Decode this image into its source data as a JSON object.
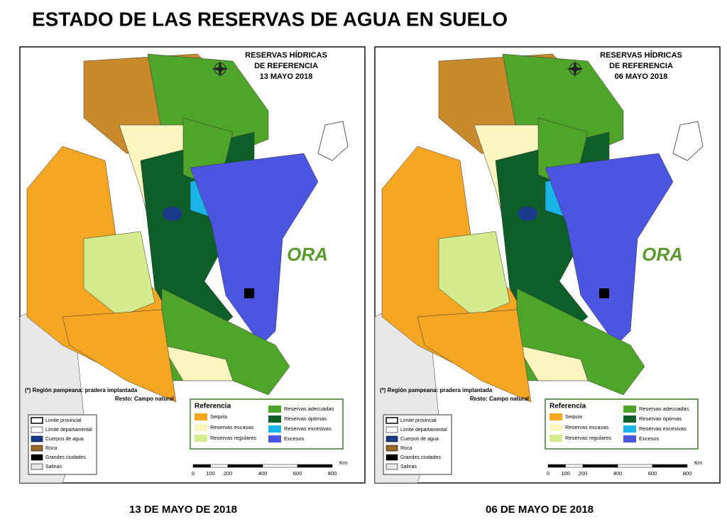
{
  "title": "ESTADO DE LAS RESERVAS DE AGUA EN SUELO",
  "maps": [
    {
      "heading": [
        "RESERVAS HÍDRICAS",
        "DE REFERENCIA",
        "13 MAYO 2018"
      ],
      "caption": "13 DE MAYO DE 2018"
    },
    {
      "heading": [
        "RESERVAS HÍDRICAS",
        "DE REFERENCIA",
        "06 MAYO 2018"
      ],
      "caption": "06 DE MAYO DE 2018"
    }
  ],
  "note": [
    "(*) Región pampeana: pradera implantada",
    "Resto: Campo natural"
  ],
  "logo": "ORA",
  "base_legend": [
    {
      "label": "Límite provincial",
      "color": "#ffffff"
    },
    {
      "label": "Límite departamental",
      "color": "#ffffff"
    },
    {
      "label": "Cuerpos de agua",
      "color": "#1a3a8a"
    },
    {
      "label": "Roca",
      "color": "#9a6a2a"
    },
    {
      "label": "Grandes ciudades",
      "color": "#000000"
    },
    {
      "label": "Salinas",
      "color": "#e8e8e8"
    }
  ],
  "legend_title": "Referencia",
  "legend": [
    {
      "label": "Sequía",
      "color": "#f5a623"
    },
    {
      "label": "Reservas escasas",
      "color": "#fbf5c0"
    },
    {
      "label": "Reservas regulares",
      "color": "#d4ec8e"
    },
    {
      "label": "Reservas adecuadas",
      "color": "#4fa42a"
    },
    {
      "label": "Reservas óptimas",
      "color": "#0e5e2a"
    },
    {
      "label": "Reservas excesivas",
      "color": "#1ab4e8"
    },
    {
      "label": "Excesos",
      "color": "#4b55e0"
    }
  ],
  "scale": {
    "unit": "Km",
    "ticks": [
      0,
      100,
      200,
      400,
      600,
      800
    ]
  }
}
